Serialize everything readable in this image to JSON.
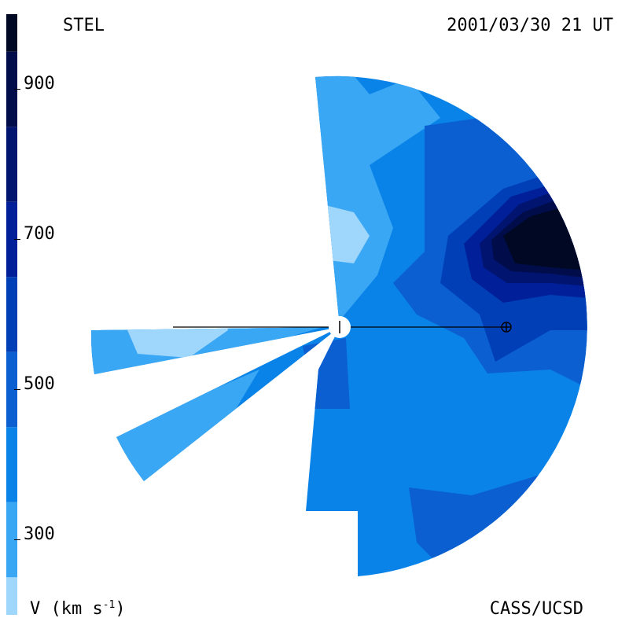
{
  "chart_data": {
    "type": "heatmap",
    "title": "",
    "source": "STEL",
    "timestamp": "2001/03/30 21 UT",
    "credit": "CASS/UCSD",
    "colorbar": {
      "label_prefix": "V (km s",
      "label_exp": "-1",
      "label_suffix": ")",
      "ticks": [
        {
          "value": 900,
          "label": "900"
        },
        {
          "value": 700,
          "label": "700"
        },
        {
          "value": 500,
          "label": "500"
        },
        {
          "value": 300,
          "label": "300"
        }
      ],
      "range": [
        200,
        1000
      ],
      "levels": [
        {
          "from": 200,
          "to": 250,
          "color": "#9fd6fb"
        },
        {
          "from": 250,
          "to": 350,
          "color": "#3aa7f4"
        },
        {
          "from": 350,
          "to": 450,
          "color": "#0a83e8"
        },
        {
          "from": 450,
          "to": 550,
          "color": "#0b5fd0"
        },
        {
          "from": 550,
          "to": 650,
          "color": "#003fb6"
        },
        {
          "from": 650,
          "to": 750,
          "color": "#001f98"
        },
        {
          "from": 750,
          "to": 850,
          "color": "#001470"
        },
        {
          "from": 850,
          "to": 950,
          "color": "#000d4a"
        },
        {
          "from": 950,
          "to": 1000,
          "color": "#000824"
        }
      ]
    },
    "markers": [
      {
        "name": "sun",
        "symbol": "circle"
      },
      {
        "name": "earth",
        "symbol": "circled-plus"
      }
    ]
  }
}
